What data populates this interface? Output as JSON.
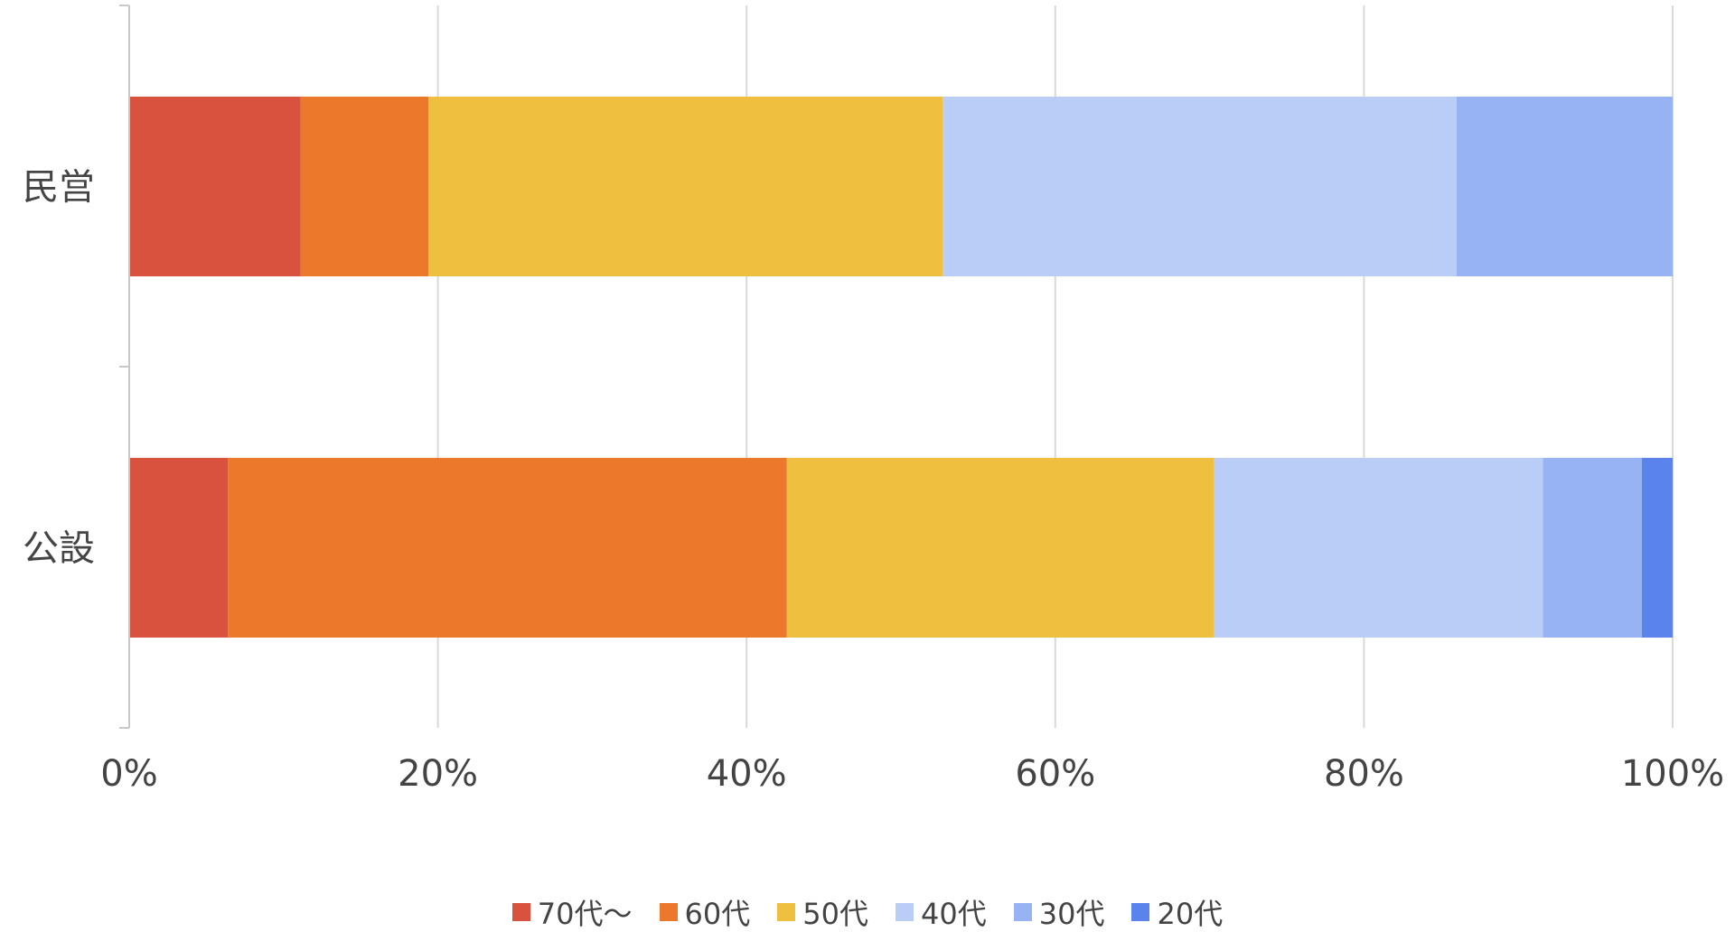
{
  "chart_data": {
    "type": "bar",
    "orientation": "horizontal",
    "stacked": "percent",
    "categories": [
      "民営",
      "公設"
    ],
    "series": [
      {
        "name": "70代〜",
        "color": "#d9523e",
        "values": [
          11.1,
          6.4
        ]
      },
      {
        "name": "60代",
        "color": "#ec782c",
        "values": [
          8.3,
          36.2
        ]
      },
      {
        "name": "50代",
        "color": "#efbf3f",
        "values": [
          33.3,
          27.7
        ]
      },
      {
        "name": "40代",
        "color": "#bacdf7",
        "values": [
          33.3,
          21.3
        ]
      },
      {
        "name": "30代",
        "color": "#98b3f3",
        "values": [
          14.0,
          6.4
        ]
      },
      {
        "name": "20代",
        "color": "#5b83ec",
        "values": [
          0.0,
          2.0
        ]
      }
    ],
    "xticks": [
      "0%",
      "20%",
      "40%",
      "60%",
      "80%",
      "100%"
    ],
    "xlim": [
      0,
      100
    ],
    "grid": true,
    "legend_position": "bottom"
  }
}
